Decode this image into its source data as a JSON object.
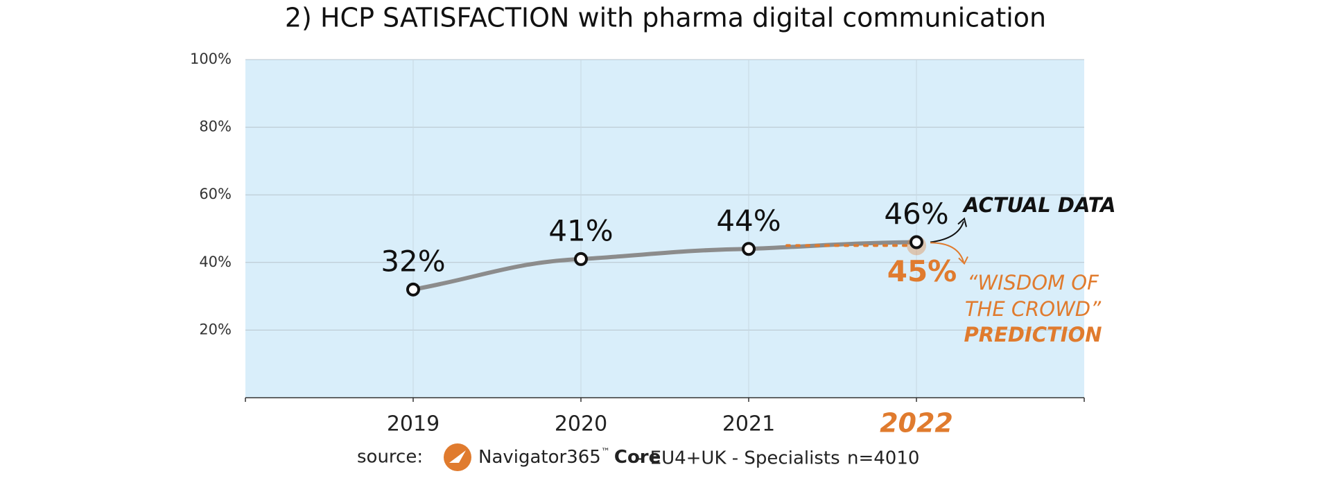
{
  "chart_data": {
    "type": "line",
    "title": "2) HCP SATISFACTION with pharma digital communication",
    "categories": [
      "2019",
      "2020",
      "2021",
      "2022"
    ],
    "values": [
      32,
      41,
      44,
      46
    ],
    "value_labels": [
      "32%",
      "41%",
      "44%",
      "46%"
    ],
    "color": "#8c8c8c",
    "prediction": {
      "value": 45,
      "value_label": "45%",
      "color": "#e07b2e"
    },
    "ylim": [
      0,
      100
    ],
    "yticks": [
      {
        "value": 20,
        "label": "20%"
      },
      {
        "value": 40,
        "label": "40%"
      },
      {
        "value": 60,
        "label": "60%"
      },
      {
        "value": 80,
        "label": "80%"
      },
      {
        "value": 100,
        "label": "100%"
      }
    ],
    "grid": true,
    "annotations": {
      "actual": "ACTUAL DATA",
      "crowd_1": "“WISDOM OF",
      "crowd_2": "THE CROWD”",
      "prediction": "PREDICTION"
    },
    "source": {
      "label": "source:",
      "brand": "Navigator365",
      "trademark": "™",
      "brand_suffix": "Core",
      "scope": "- EU4+UK - Specialists",
      "sample": "n=4010"
    }
  }
}
